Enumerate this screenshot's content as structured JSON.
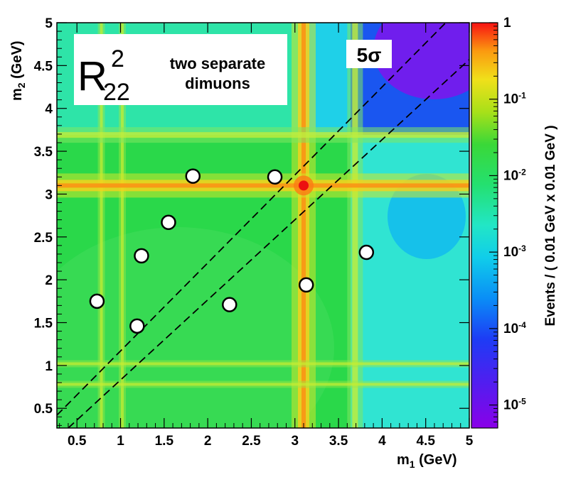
{
  "chart_data": {
    "type": "heatmap",
    "xlabel": {
      "main": "m",
      "sub": "1",
      "unit": " (GeV)"
    },
    "ylabel": {
      "main": "m",
      "sub": "2",
      "unit": " (GeV)"
    },
    "xlim": [
      0.27,
      5.0
    ],
    "ylim": [
      0.27,
      5.0
    ],
    "x_ticks": [
      "0.5",
      "1",
      "1.5",
      "2",
      "2.5",
      "3",
      "3.5",
      "4",
      "4.5",
      "5"
    ],
    "y_ticks": [
      "0.5",
      "1",
      "1.5",
      "2",
      "2.5",
      "3",
      "3.5",
      "4",
      "4.5",
      "5"
    ],
    "colorbar": {
      "label": "Events / ( 0.01 GeV x 0.01 GeV )",
      "scale": "log",
      "range": [
        5e-06,
        1
      ],
      "ticks": [
        {
          "value": 1,
          "base": "1",
          "exp": ""
        },
        {
          "value": 0.1,
          "base": "10",
          "exp": "-1"
        },
        {
          "value": 0.01,
          "base": "10",
          "exp": "-2"
        },
        {
          "value": 0.001,
          "base": "10",
          "exp": "-3"
        },
        {
          "value": 0.0001,
          "base": "10",
          "exp": "-4"
        },
        {
          "value": 1e-05,
          "base": "10",
          "exp": "-5"
        }
      ]
    },
    "bands": [
      {
        "axis": "x",
        "at": 0.78,
        "strength": "weak"
      },
      {
        "axis": "x",
        "at": 1.02,
        "strength": "weak"
      },
      {
        "axis": "x",
        "at": 3.1,
        "strength": "strong"
      },
      {
        "axis": "x",
        "at": 3.69,
        "strength": "medium"
      },
      {
        "axis": "y",
        "at": 0.78,
        "strength": "weak"
      },
      {
        "axis": "y",
        "at": 1.02,
        "strength": "weak"
      },
      {
        "axis": "y",
        "at": 3.1,
        "strength": "strong"
      },
      {
        "axis": "y",
        "at": 3.69,
        "strength": "medium"
      }
    ],
    "diagonal_lines": [
      {
        "x": [
          0.27,
          4.73
        ],
        "y": [
          0.42,
          5.0
        ]
      },
      {
        "x": [
          0.4,
          5.0
        ],
        "y": [
          0.27,
          4.57
        ]
      }
    ],
    "points": [
      {
        "x": 0.73,
        "y": 1.75
      },
      {
        "x": 1.19,
        "y": 1.46
      },
      {
        "x": 1.24,
        "y": 2.28
      },
      {
        "x": 1.55,
        "y": 2.67
      },
      {
        "x": 1.83,
        "y": 3.21
      },
      {
        "x": 2.25,
        "y": 1.71
      },
      {
        "x": 2.77,
        "y": 3.2
      },
      {
        "x": 3.13,
        "y": 1.94
      },
      {
        "x": 3.82,
        "y": 2.32
      }
    ],
    "legend_box": {
      "symbol": {
        "main": "R",
        "sup": "2",
        "sub": "22"
      },
      "lines": [
        "two separate",
        "dimuons"
      ],
      "placement": "top-left"
    },
    "annotation": "5σ"
  }
}
